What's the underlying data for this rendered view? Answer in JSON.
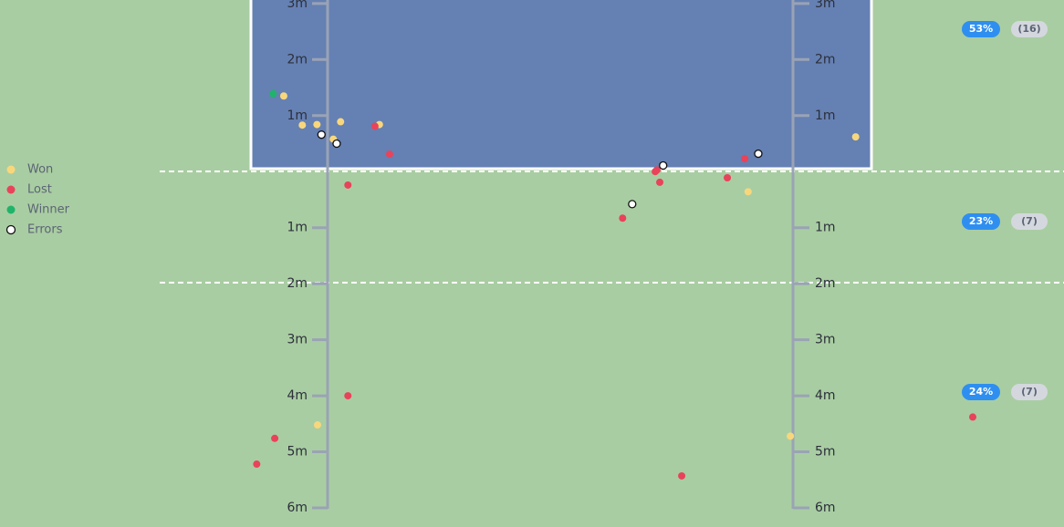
{
  "chart_data": {
    "type": "scatter",
    "xlim": [
      -3,
      13
    ],
    "ylim": [
      -6,
      3.03
    ],
    "yticks": [
      {
        "value": 3,
        "label": "3m"
      },
      {
        "value": 2,
        "label": "2m"
      },
      {
        "value": 1,
        "label": "1m"
      },
      {
        "value": -1,
        "label": "1m"
      },
      {
        "value": -2,
        "label": "2m"
      },
      {
        "value": -3,
        "label": "3m"
      },
      {
        "value": -4,
        "label": "4m"
      },
      {
        "value": -5,
        "label": "5m"
      },
      {
        "value": -6,
        "label": "6m"
      }
    ],
    "series": [
      {
        "name": "Won",
        "color": "#f8d77c",
        "x": [
          -0.78,
          -0.45,
          -0.19,
          0.23,
          0.1,
          0.92,
          7.47,
          9.38,
          -0.18,
          8.22
        ],
        "values": [
          1.35,
          0.83,
          0.84,
          0.89,
          0.58,
          0.84,
          -0.36,
          0.62,
          -4.52,
          -4.72
        ]
      },
      {
        "name": "Lost",
        "color": "#e8435a",
        "x": [
          0.84,
          1.1,
          0.36,
          0.36,
          -0.94,
          -1.26,
          5.24,
          5.82,
          5.85,
          5.9,
          7.1,
          7.41,
          6.29,
          11.46
        ],
        "values": [
          0.81,
          0.31,
          -0.24,
          -4.0,
          -4.76,
          -5.22,
          -0.83,
          0.0,
          0.03,
          -0.19,
          -0.11,
          0.23,
          -5.43,
          -4.38
        ]
      },
      {
        "name": "Winner",
        "color": "#1fb46a",
        "x": [
          -0.97
        ],
        "values": [
          1.39
        ]
      },
      {
        "name": "Errors",
        "color": "#ffffff",
        "x": [
          -0.11,
          0.16,
          5.96,
          7.65,
          5.41
        ],
        "values": [
          0.66,
          0.5,
          0.11,
          0.32,
          -0.58
        ]
      }
    ],
    "zones": {
      "values": [
        53,
        23,
        24
      ],
      "value_labels": [
        "53%",
        "23%",
        "24%"
      ],
      "counts": [
        16,
        7,
        7
      ],
      "count_labels": [
        "(16)",
        "(7)",
        "(7)"
      ]
    }
  }
}
